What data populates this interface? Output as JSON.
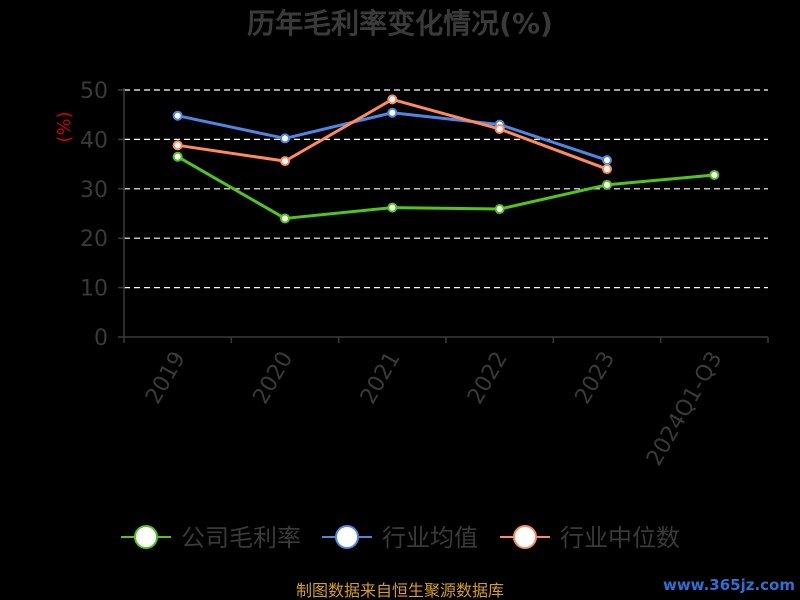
{
  "chart_data": {
    "type": "line",
    "title": "历年毛利率变化情况(%)",
    "ylabel": "(%)",
    "categories": [
      "2019",
      "2020",
      "2021",
      "2022",
      "2023",
      "2024Q1-Q3"
    ],
    "yticks": [
      "0",
      "10",
      "20",
      "30",
      "40",
      "50"
    ],
    "ylim": [
      0,
      50
    ],
    "grid": true,
    "legend_position": "bottom",
    "series": [
      {
        "name": "公司毛利率",
        "color": "#52c41a",
        "values": [
          36.5,
          24.0,
          26.2,
          25.9,
          30.8,
          32.8
        ]
      },
      {
        "name": "行业均值",
        "color": "#4e86e4",
        "values": [
          44.8,
          40.2,
          45.4,
          43.0,
          35.8,
          null
        ]
      },
      {
        "name": "行业中位数",
        "color": "#ff8a5c",
        "values": [
          38.8,
          35.6,
          48.1,
          42.1,
          34.0,
          null
        ]
      }
    ]
  },
  "footer": "制图数据来自恒生聚源数据库",
  "watermark": "www.365jz.com"
}
